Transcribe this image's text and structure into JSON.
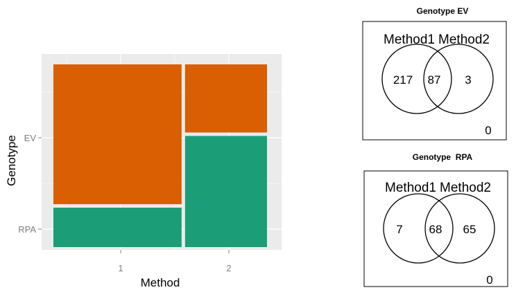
{
  "chart_data": [
    {
      "type": "mosaic",
      "xlabel": "Method",
      "ylabel": "Genotype",
      "x_categories": [
        "1",
        "2"
      ],
      "y_categories": [
        "EV",
        "RPA"
      ],
      "column_widths": [
        0.61,
        0.39
      ],
      "columns": [
        {
          "x": "1",
          "segments": [
            {
              "genotype": "EV",
              "proportion": 0.78
            },
            {
              "genotype": "RPA",
              "proportion": 0.22
            }
          ]
        },
        {
          "x": "2",
          "segments": [
            {
              "genotype": "EV",
              "proportion": 0.38
            },
            {
              "genotype": "RPA",
              "proportion": 0.62
            }
          ]
        }
      ],
      "fill_colors": {
        "EV": "#d95f02",
        "RPA": "#1b9e77"
      },
      "panel_background": "#ebebeb",
      "grid": true
    },
    {
      "type": "venn",
      "title": "Genotype EV",
      "sets": [
        "Method1",
        "Method2"
      ],
      "only_left": "217",
      "intersection": "87",
      "only_right": "3",
      "outside": "0"
    },
    {
      "type": "venn",
      "title": "Genotype  RPA",
      "sets": [
        "Method1",
        "Method2"
      ],
      "only_left": "7",
      "intersection": "68",
      "only_right": "65",
      "outside": "0"
    }
  ]
}
